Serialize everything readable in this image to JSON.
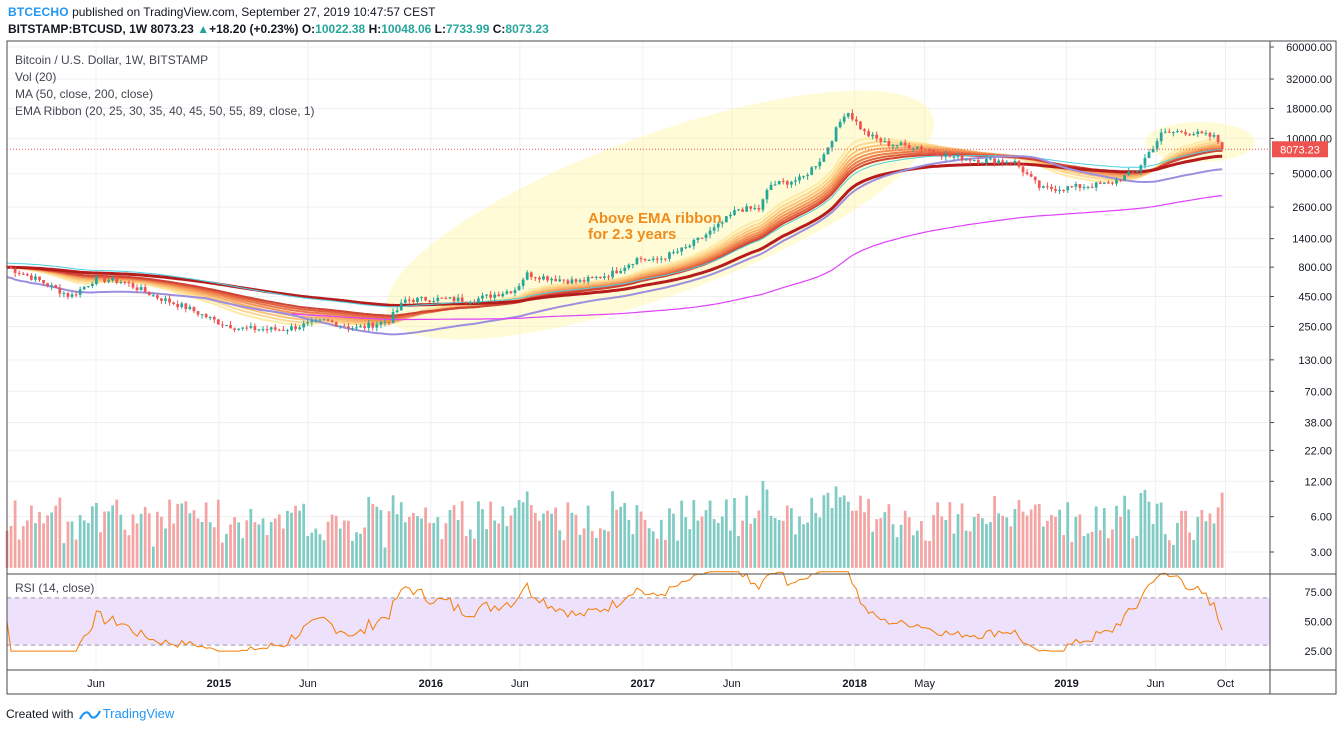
{
  "header": {
    "brand": "BTCECHO",
    "published": " published on TradingView.com, September 27, 2019 10:47:57 CEST",
    "symbol": "BITSTAMP:BTCUSD, 1W",
    "last": "8073.23",
    "arrow": "▲",
    "change": "+18.20 (+0.23%)",
    "o_label": "O:",
    "o": "10022.38",
    "h_label": "H:",
    "h": "10048.06",
    "l_label": "L:",
    "l": "7733.99",
    "c_label": "C:",
    "c": "8073.23"
  },
  "legend": {
    "title": "Bitcoin / U.S. Dollar, 1W, BITSTAMP",
    "vol": "Vol (20)",
    "ma": "MA (50, close, 200, close)",
    "ribbon": "EMA Ribbon (20, 25, 30, 35, 40, 45, 50, 55, 89, close, 1)",
    "rsi": "RSI (14, close)"
  },
  "annotation": {
    "line1": "Above EMA ribbon",
    "line2": "for 2.3 years"
  },
  "footer": {
    "created_with": "Created with",
    "brand": "TradingView"
  },
  "colors": {
    "up": "#26a69a",
    "down": "#ef5350",
    "vol_up": "#80cbc4",
    "vol_down": "#f4a4a3",
    "ribbon_light": "#fde7a6",
    "ribbon_dark": "#b71c1c",
    "ma50": "#9c8fe0",
    "ma200": "#e040fb",
    "cyan": "#4dd0e1",
    "rsi": "#f57c00",
    "rsi_band": "#ede1fb",
    "ellipse": "#fff59d",
    "annotation": "#ef8c1e",
    "price_tag": "#ef5350"
  },
  "chart_data": {
    "type": "candlestick",
    "title": "Bitcoin / U.S. Dollar, 1W, BITSTAMP",
    "scale": "log",
    "last_price": 8073.23,
    "price_ticks": [
      60000,
      32000,
      18000,
      10000,
      5000,
      2600,
      1400,
      800,
      450,
      250,
      130,
      70,
      38,
      22,
      12,
      6,
      3
    ],
    "price_tick_labels": [
      "60000.00",
      "32000.00",
      "18000.00",
      "10000.00",
      "5000.00",
      "2600.00",
      "1400.00",
      "800.00",
      "450.00",
      "250.00",
      "130.00",
      "70.00",
      "38.00",
      "22.00",
      "12.00",
      "6.00",
      "3.00"
    ],
    "x_tick_labels": [
      "Jun",
      "2015",
      "Jun",
      "2016",
      "Jun",
      "2017",
      "Jun",
      "2018",
      "May",
      "2019",
      "Jun",
      "Oct"
    ],
    "x_tick_pos": [
      2014.42,
      2015.0,
      2015.42,
      2016.0,
      2016.42,
      2017.0,
      2017.42,
      2018.0,
      2018.33,
      2019.0,
      2019.42,
      2019.75
    ],
    "x_range": [
      2014.0,
      2019.96
    ],
    "price_path": [
      [
        2014.0,
        800
      ],
      [
        2014.15,
        620
      ],
      [
        2014.3,
        450
      ],
      [
        2014.42,
        640
      ],
      [
        2014.55,
        600
      ],
      [
        2014.7,
        450
      ],
      [
        2014.85,
        360
      ],
      [
        2015.0,
        270
      ],
      [
        2015.1,
        240
      ],
      [
        2015.3,
        235
      ],
      [
        2015.5,
        280
      ],
      [
        2015.65,
        240
      ],
      [
        2015.8,
        280
      ],
      [
        2015.88,
        420
      ],
      [
        2016.0,
        430
      ],
      [
        2016.2,
        420
      ],
      [
        2016.4,
        520
      ],
      [
        2016.45,
        700
      ],
      [
        2016.55,
        650
      ],
      [
        2016.7,
        600
      ],
      [
        2016.85,
        700
      ],
      [
        2016.98,
        960
      ],
      [
        2017.05,
        900
      ],
      [
        2017.2,
        1150
      ],
      [
        2017.35,
        1750
      ],
      [
        2017.45,
        2500
      ],
      [
        2017.55,
        2500
      ],
      [
        2017.6,
        4000
      ],
      [
        2017.75,
        4500
      ],
      [
        2017.85,
        7000
      ],
      [
        2017.96,
        17500
      ],
      [
        2018.05,
        11000
      ],
      [
        2018.15,
        9000
      ],
      [
        2018.3,
        8500
      ],
      [
        2018.45,
        7000
      ],
      [
        2018.6,
        6500
      ],
      [
        2018.75,
        6400
      ],
      [
        2018.88,
        3700
      ],
      [
        2019.0,
        3800
      ],
      [
        2019.2,
        4100
      ],
      [
        2019.33,
        5300
      ],
      [
        2019.45,
        11000
      ],
      [
        2019.55,
        11500
      ],
      [
        2019.7,
        10200
      ],
      [
        2019.74,
        8073
      ]
    ],
    "ema_ribbon_periods": [
      20,
      25,
      30,
      35,
      40,
      45,
      50,
      55,
      89
    ],
    "rsi": {
      "levels": [
        70,
        30
      ],
      "tick_labels": [
        "75.00",
        "50.00",
        "25.00"
      ],
      "ticks": [
        75,
        50,
        25
      ]
    },
    "volume_tick_labels": [
      "22.00",
      "12.00",
      "6.00",
      "3.00"
    ],
    "volume_ticks": [
      22,
      12,
      6,
      3
    ]
  }
}
